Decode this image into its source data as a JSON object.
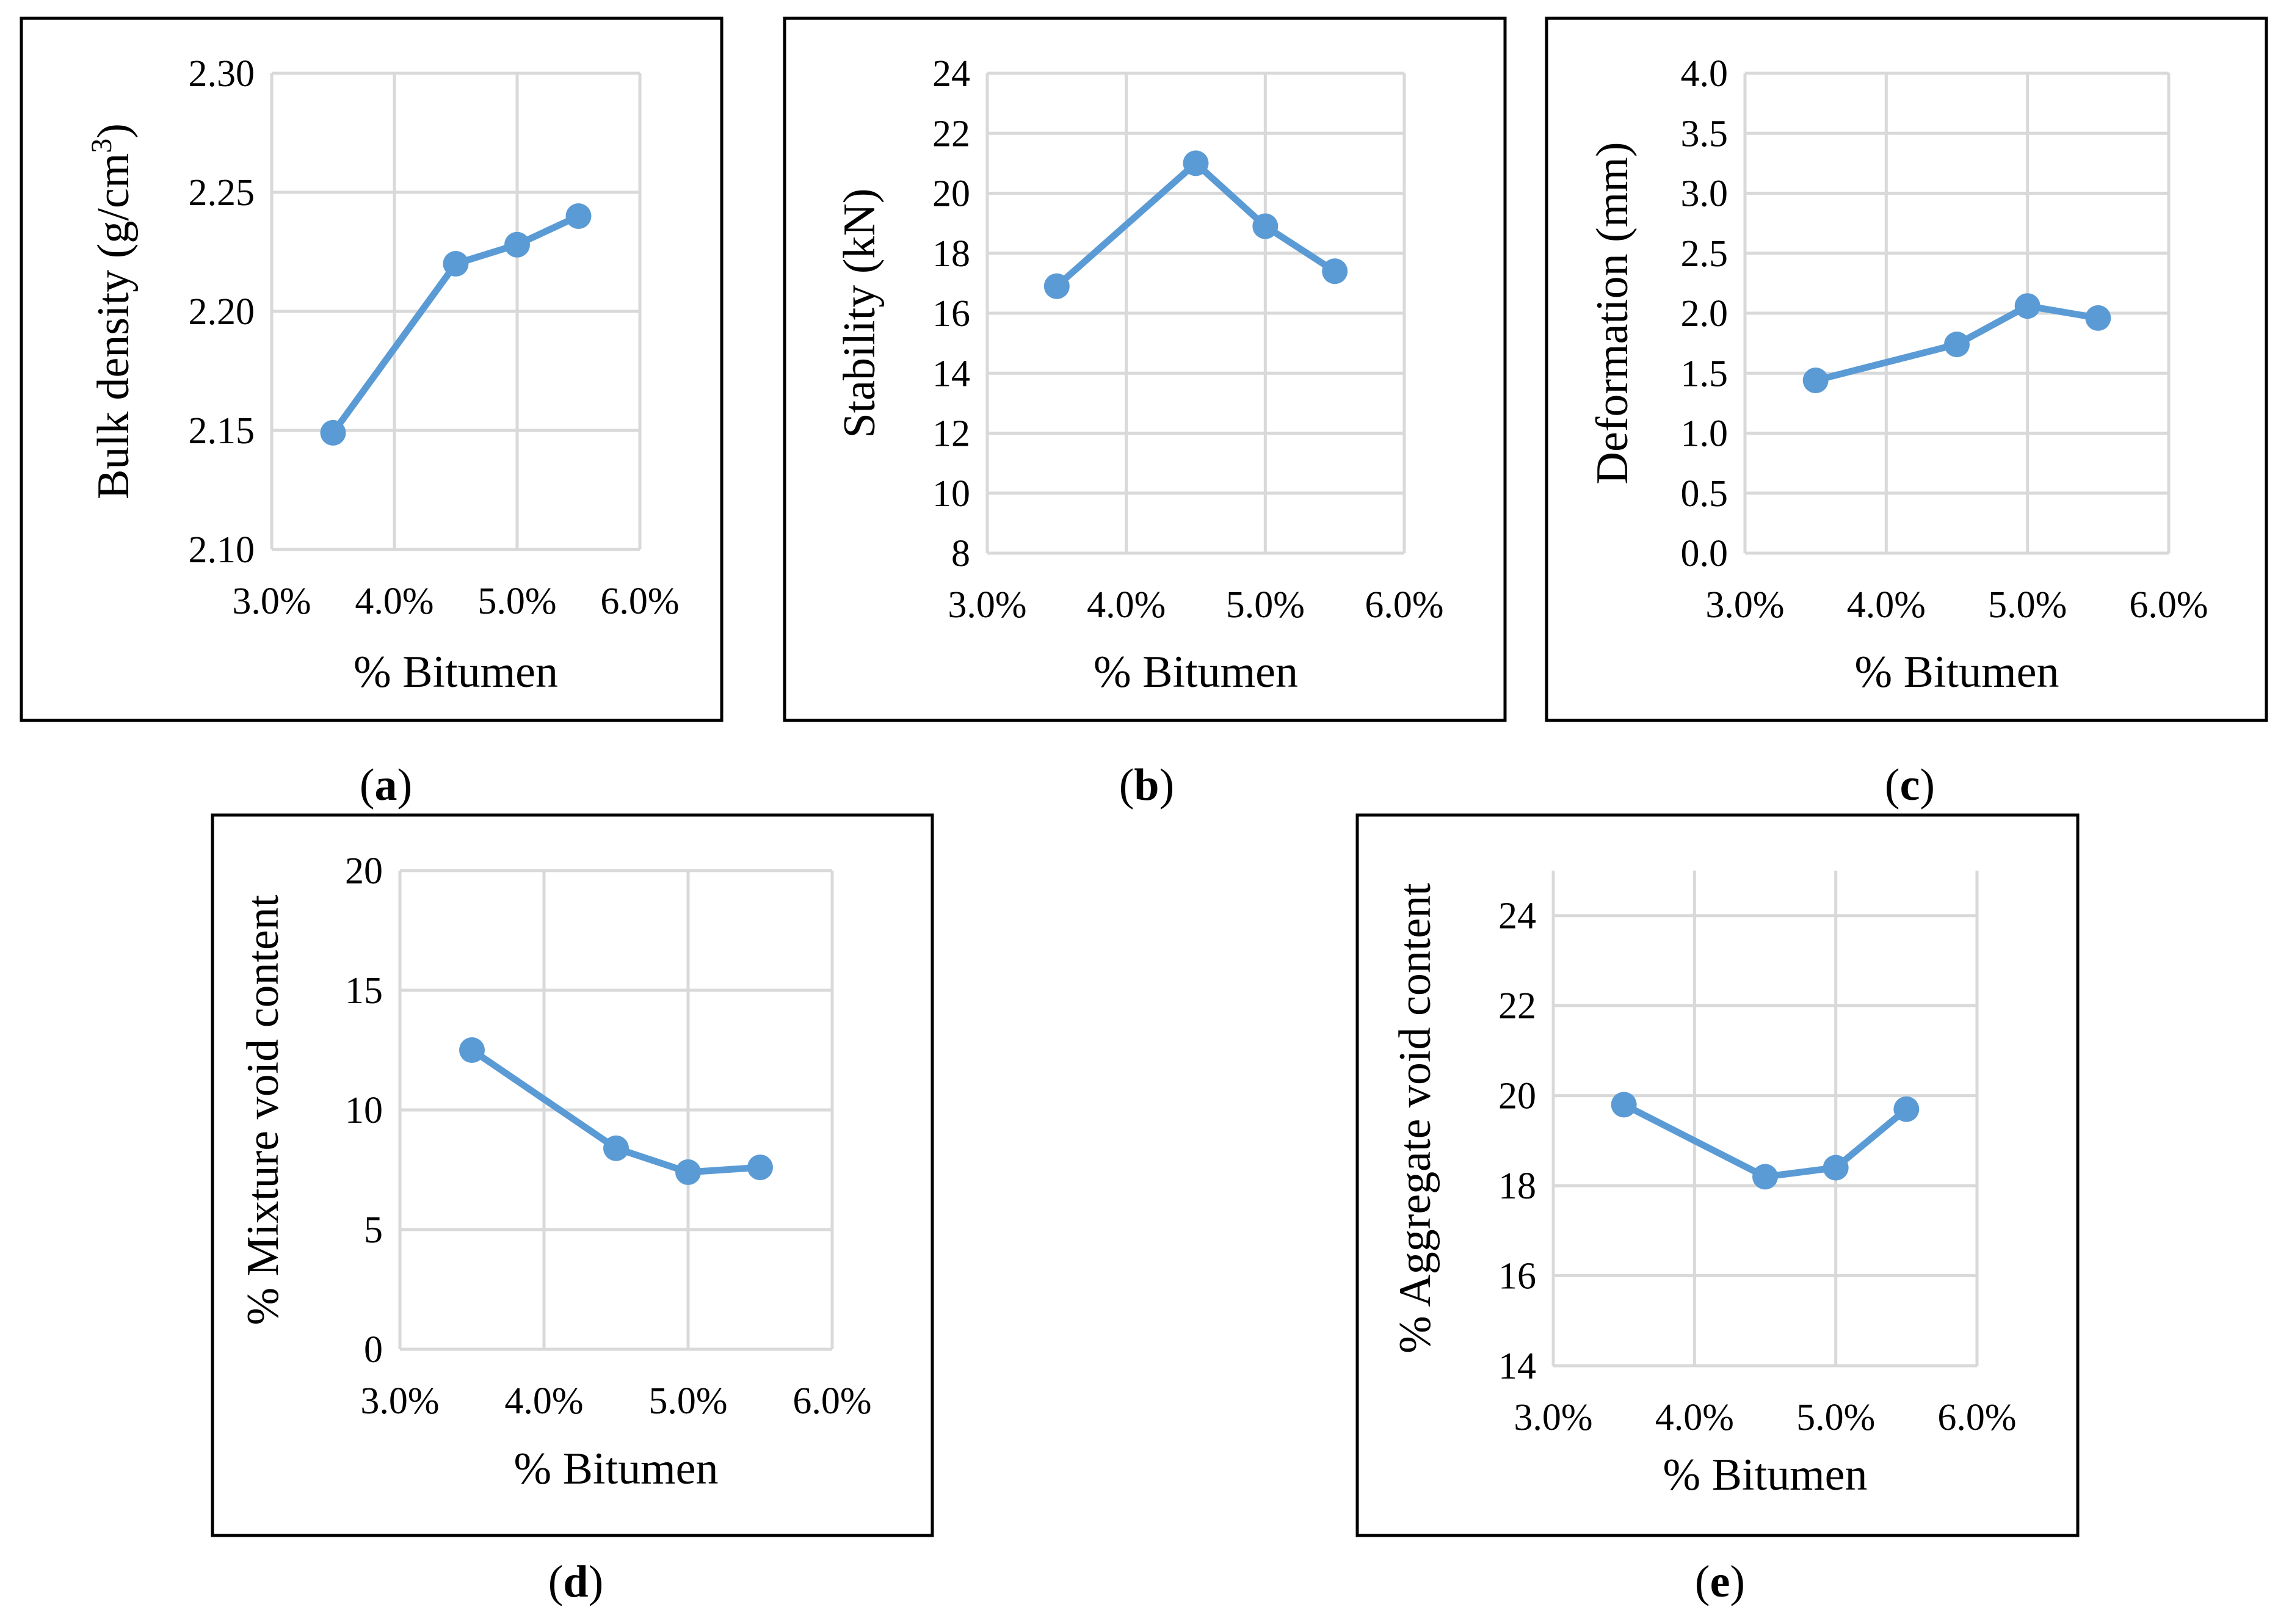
{
  "chart_data": [
    {
      "id": "a",
      "type": "line",
      "panel_label": "a",
      "xlabel": "% Bitumen",
      "ylabel": "Bulk density (g/cm",
      "ylabel_sup": "3",
      "ylabel_close": ")",
      "x": [
        3.5,
        4.5,
        5.0,
        5.5
      ],
      "values": [
        2.149,
        2.22,
        2.228,
        2.24
      ],
      "xlim": [
        3.0,
        6.0
      ],
      "ylim": [
        2.1,
        2.3
      ],
      "xticks": [
        "3.0%",
        "4.0%",
        "5.0%",
        "6.0%"
      ],
      "yticks": [
        "2.10",
        "2.15",
        "2.20",
        "2.25",
        "2.30"
      ],
      "grid": true,
      "color": "#5b9bd5"
    },
    {
      "id": "b",
      "type": "line",
      "panel_label": "b",
      "xlabel": "% Bitumen",
      "ylabel": "Stability (kN)",
      "x": [
        3.5,
        4.5,
        5.0,
        5.5
      ],
      "values": [
        16.9,
        21.0,
        18.9,
        17.4
      ],
      "xlim": [
        3.0,
        6.0
      ],
      "ylim": [
        8,
        24
      ],
      "xticks": [
        "3.0%",
        "4.0%",
        "5.0%",
        "6.0%"
      ],
      "yticks": [
        "8",
        "10",
        "12",
        "14",
        "16",
        "18",
        "20",
        "22",
        "24"
      ],
      "grid": true,
      "color": "#5b9bd5"
    },
    {
      "id": "c",
      "type": "line",
      "panel_label": "c",
      "xlabel": "% Bitumen",
      "ylabel": "Deformation (mm)",
      "x": [
        3.5,
        4.5,
        5.0,
        5.5
      ],
      "values": [
        1.44,
        1.74,
        2.06,
        1.96
      ],
      "xlim": [
        3.0,
        6.0
      ],
      "ylim": [
        0.0,
        4.0
      ],
      "xticks": [
        "3.0%",
        "4.0%",
        "5.0%",
        "6.0%"
      ],
      "yticks": [
        "0.0",
        "0.5",
        "1.0",
        "1.5",
        "2.0",
        "2.5",
        "3.0",
        "3.5",
        "4.0"
      ],
      "grid": true,
      "color": "#5b9bd5"
    },
    {
      "id": "d",
      "type": "line",
      "panel_label": "d",
      "xlabel": "% Bitumen",
      "ylabel": "% Mixture void content",
      "x": [
        3.5,
        4.5,
        5.0,
        5.5
      ],
      "values": [
        12.5,
        8.4,
        7.4,
        7.6
      ],
      "xlim": [
        3.0,
        6.0
      ],
      "ylim": [
        0,
        20
      ],
      "xticks": [
        "3.0%",
        "4.0%",
        "5.0%",
        "6.0%"
      ],
      "yticks": [
        "0",
        "5",
        "10",
        "15",
        "20"
      ],
      "grid": true,
      "color": "#5b9bd5"
    },
    {
      "id": "e",
      "type": "line",
      "panel_label": "e",
      "xlabel": "% Bitumen",
      "ylabel": "% Aggregate void content",
      "x": [
        3.5,
        4.5,
        5.0,
        5.5
      ],
      "values": [
        19.8,
        18.2,
        18.4,
        19.7
      ],
      "xlim": [
        3.0,
        6.0
      ],
      "ylim": [
        14,
        25
      ],
      "xticks": [
        "3.0%",
        "4.0%",
        "5.0%",
        "6.0%"
      ],
      "yticks": [
        "14",
        "16",
        "18",
        "20",
        "22",
        "24"
      ],
      "ytick_values": [
        14,
        16,
        18,
        20,
        22,
        24
      ],
      "grid": true,
      "color": "#5b9bd5"
    }
  ]
}
